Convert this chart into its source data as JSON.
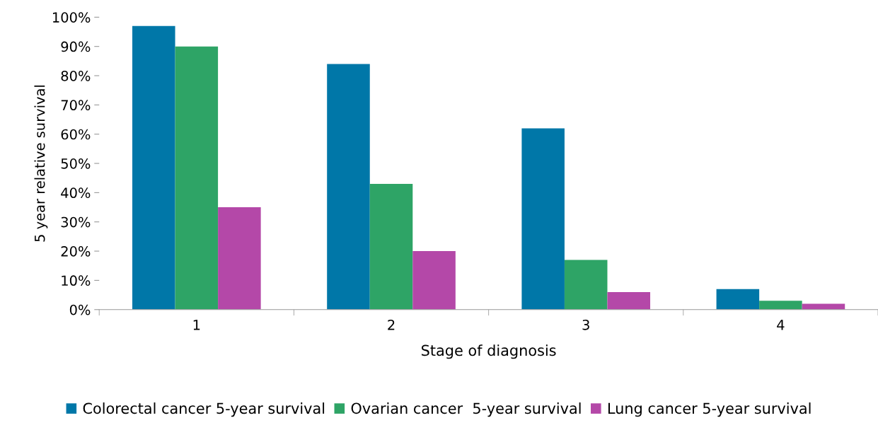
{
  "chart_data": {
    "type": "bar",
    "xlabel": "Stage of diagnosis",
    "ylabel": "5 year relative survival",
    "categories": [
      "1",
      "2",
      "3",
      "4"
    ],
    "series": [
      {
        "name": "Colorectal cancer 5-year survival",
        "color": "#0077a8",
        "values": [
          97,
          84,
          62,
          7
        ]
      },
      {
        "name": "Ovarian cancer  5-year survival",
        "color": "#2ea466",
        "values": [
          90,
          43,
          17,
          3
        ]
      },
      {
        "name": "Lung cancer 5-year survival",
        "color": "#b448a8",
        "values": [
          35,
          20,
          6,
          2
        ]
      }
    ],
    "ylim": [
      0,
      100
    ],
    "yticks": [
      {
        "value": 0,
        "label": "0%"
      },
      {
        "value": 10,
        "label": "10%"
      },
      {
        "value": 20,
        "label": "20%"
      },
      {
        "value": 30,
        "label": "30%"
      },
      {
        "value": 40,
        "label": "40%"
      },
      {
        "value": 50,
        "label": "50%"
      },
      {
        "value": 60,
        "label": "60%"
      },
      {
        "value": 70,
        "label": "70%"
      },
      {
        "value": 80,
        "label": "80%"
      },
      {
        "value": 90,
        "label": "90%"
      },
      {
        "value": 100,
        "label": "100%"
      }
    ],
    "grid": false,
    "legend": "bottom"
  }
}
